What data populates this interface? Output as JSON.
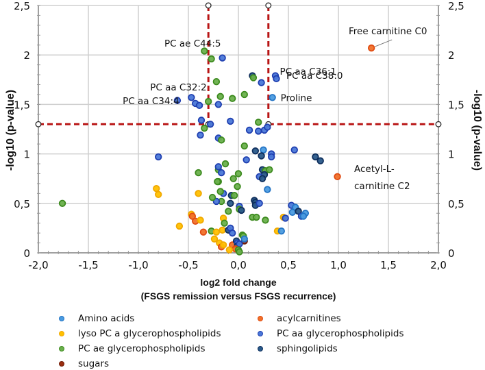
{
  "chart_data": {
    "type": "scatter",
    "title": "",
    "xlabel": "log2 fold change",
    "xlabel_sub": "(FSGS remission versus FSGS recurrence)",
    "ylabel": "-log10 (p-value)",
    "ylabel_right": "-log10 (p-value)",
    "xlim": [
      -2.0,
      2.0
    ],
    "ylim": [
      0,
      2.5
    ],
    "x_ticks": [
      "-2,0",
      "-1,5",
      "-1,0",
      "-0,5",
      "0,0",
      "0,5",
      "1,0",
      "1,5",
      "2,0"
    ],
    "x_tick_values": [
      -2,
      -1.5,
      -1,
      -0.5,
      0,
      0.5,
      1,
      1.5,
      2
    ],
    "y_ticks": [
      "0",
      "0,5",
      "1",
      "1,5",
      "2",
      "2,5"
    ],
    "y_tick_values": [
      0,
      0.5,
      1,
      1.5,
      2,
      2.5
    ],
    "grid": true,
    "legend_position": "bottom",
    "thresholds": {
      "x_low": -0.3,
      "x_high": 0.3,
      "y": 1.3,
      "color": "#b81414"
    },
    "categories": [
      {
        "key": "amino",
        "name": "Amino acids",
        "color": "#4a9be0",
        "edge": "#2273c4"
      },
      {
        "key": "lyso",
        "name": "lyso PC a glycerophospholipids",
        "color": "#ffc000",
        "edge": "#f0a800"
      },
      {
        "key": "pcae",
        "name": "PC ae glycerophospholipids",
        "color": "#6ab04c",
        "edge": "#3c8a1e"
      },
      {
        "key": "sugars",
        "name": "sugars",
        "color": "#9b2d10",
        "edge": "#6e1a06"
      },
      {
        "key": "acyl",
        "name": "acylcarnitines",
        "color": "#f0712a",
        "edge": "#e04a10"
      },
      {
        "key": "pcaa",
        "name": "PC aa glycerophospholipids",
        "color": "#4a78d8",
        "edge": "#1f3fb0"
      },
      {
        "key": "sphingo",
        "name": "sphingolipids",
        "color": "#2a5a8a",
        "edge": "#0e2e5c"
      }
    ],
    "legend_order": [
      0,
      4,
      1,
      5,
      2,
      6,
      3
    ],
    "annotations": [
      {
        "text": "Free carnitine C0",
        "x": 1.33,
        "y": 2.07,
        "leader": true
      },
      {
        "text": "PC ae C44:5",
        "x": -0.33,
        "y": 2.05
      },
      {
        "text": "PC aa C36:1",
        "x": 0.36,
        "y": 1.8
      },
      {
        "text": "PC aa C38:0",
        "x": 0.37,
        "y": 1.76
      },
      {
        "text": "PC aa C32:2",
        "x": -0.29,
        "y": 1.55
      },
      {
        "text": "PC aa C34:4",
        "x": -0.53,
        "y": 1.53
      },
      {
        "text": "Proline",
        "x": 0.34,
        "y": 1.57
      },
      {
        "text": "Acetyl-L-",
        "x": 0.99,
        "y": 0.77
      },
      {
        "text": "carnitine C2",
        "x": 0.99,
        "y": 0.77
      }
    ],
    "points": [
      {
        "c": "acyl",
        "x": 1.33,
        "y": 2.07
      },
      {
        "c": "pcae",
        "x": -0.34,
        "y": 2.04
      },
      {
        "c": "pcae",
        "x": -0.27,
        "y": 1.96
      },
      {
        "c": "pcaa",
        "x": -0.16,
        "y": 1.97
      },
      {
        "c": "pcaa",
        "x": 0.37,
        "y": 1.79
      },
      {
        "c": "pcaa",
        "x": 0.38,
        "y": 1.76
      },
      {
        "c": "sphingo",
        "x": 0.14,
        "y": 1.79
      },
      {
        "c": "pcae",
        "x": 0.15,
        "y": 1.77
      },
      {
        "c": "pcaa",
        "x": 0.23,
        "y": 1.72
      },
      {
        "c": "pcae",
        "x": -0.22,
        "y": 1.73
      },
      {
        "c": "pcae",
        "x": 0.06,
        "y": 1.6
      },
      {
        "c": "pcae",
        "x": -0.06,
        "y": 1.56
      },
      {
        "c": "amino",
        "x": 0.34,
        "y": 1.57
      },
      {
        "c": "pcaa",
        "x": -0.47,
        "y": 1.57
      },
      {
        "c": "pcae",
        "x": -0.18,
        "y": 1.58
      },
      {
        "c": "pcaa",
        "x": -0.43,
        "y": 1.51
      },
      {
        "c": "pcaa",
        "x": -0.39,
        "y": 1.49
      },
      {
        "c": "pcae",
        "x": -0.3,
        "y": 1.53
      },
      {
        "c": "pcaa",
        "x": -0.2,
        "y": 1.5
      },
      {
        "c": "pcaa",
        "x": -0.61,
        "y": 1.54
      },
      {
        "c": "pcaa",
        "x": -0.37,
        "y": 1.34
      },
      {
        "c": "pcae",
        "x": 0.2,
        "y": 1.32
      },
      {
        "c": "pcaa",
        "x": -0.08,
        "y": 1.33
      },
      {
        "c": "pcaa",
        "x": 0.11,
        "y": 1.24
      },
      {
        "c": "pcaa",
        "x": 0.2,
        "y": 1.23
      },
      {
        "c": "pcaa",
        "x": 0.26,
        "y": 1.24
      },
      {
        "c": "pcaa",
        "x": 0.29,
        "y": 1.27
      },
      {
        "c": "pcaa",
        "x": -0.28,
        "y": 1.3
      },
      {
        "c": "pcae",
        "x": -0.34,
        "y": 1.26
      },
      {
        "c": "pcaa",
        "x": -0.38,
        "y": 1.19
      },
      {
        "c": "pcaa",
        "x": -0.2,
        "y": 1.16
      },
      {
        "c": "pcae",
        "x": -0.17,
        "y": 1.14
      },
      {
        "c": "pcae",
        "x": 0.06,
        "y": 1.08
      },
      {
        "c": "sphingo",
        "x": 0.17,
        "y": 1.03
      },
      {
        "c": "amino",
        "x": 0.25,
        "y": 1.04
      },
      {
        "c": "pcaa",
        "x": 0.33,
        "y": 1.0
      },
      {
        "c": "pcaa",
        "x": 0.56,
        "y": 1.04
      },
      {
        "c": "sphingo",
        "x": 0.23,
        "y": 0.98
      },
      {
        "c": "pcaa",
        "x": 0.08,
        "y": 0.94
      },
      {
        "c": "sphingo",
        "x": 0.77,
        "y": 0.97
      },
      {
        "c": "pcaa",
        "x": 0.33,
        "y": 0.97
      },
      {
        "c": "sphingo",
        "x": 0.82,
        "y": 0.93
      },
      {
        "c": "pcaa",
        "x": -0.8,
        "y": 0.97
      },
      {
        "c": "pcae",
        "x": -0.13,
        "y": 0.9
      },
      {
        "c": "pcae",
        "x": -0.2,
        "y": 0.84
      },
      {
        "c": "pcaa",
        "x": -0.2,
        "y": 0.87
      },
      {
        "c": "pcaa",
        "x": -0.17,
        "y": 0.81
      },
      {
        "c": "pcae",
        "x": -0.4,
        "y": 0.81
      },
      {
        "c": "pcae",
        "x": 0.0,
        "y": 0.8
      },
      {
        "c": "sphingo",
        "x": 0.24,
        "y": 0.84
      },
      {
        "c": "pcae",
        "x": 0.27,
        "y": 0.83
      },
      {
        "c": "pcae",
        "x": 0.31,
        "y": 0.84
      },
      {
        "c": "sphingo",
        "x": 0.26,
        "y": 0.79
      },
      {
        "c": "pcaa",
        "x": 0.21,
        "y": 0.77
      },
      {
        "c": "sphingo",
        "x": 0.24,
        "y": 0.75
      },
      {
        "c": "amino",
        "x": 0.29,
        "y": 0.64
      },
      {
        "c": "acyl",
        "x": 0.99,
        "y": 0.77
      },
      {
        "c": "pcaa",
        "x": 0.18,
        "y": 0.5
      },
      {
        "c": "pcae",
        "x": -0.2,
        "y": 0.72
      },
      {
        "c": "pcae",
        "x": -0.21,
        "y": 0.72
      },
      {
        "c": "pcaa",
        "x": -0.15,
        "y": 0.6
      },
      {
        "c": "pcae",
        "x": -0.05,
        "y": 0.75
      },
      {
        "c": "pcae",
        "x": -0.01,
        "y": 0.67
      },
      {
        "c": "pcae",
        "x": -0.17,
        "y": 0.52
      },
      {
        "c": "pcaa",
        "x": -0.22,
        "y": 0.52
      },
      {
        "c": "lyso",
        "x": -0.82,
        "y": 0.65
      },
      {
        "c": "lyso",
        "x": -0.8,
        "y": 0.59
      },
      {
        "c": "pcae",
        "x": -1.76,
        "y": 0.5
      },
      {
        "c": "lyso",
        "x": -0.4,
        "y": 0.6
      },
      {
        "c": "pcae",
        "x": -0.26,
        "y": 0.56
      },
      {
        "c": "pcae",
        "x": -0.18,
        "y": 0.62
      },
      {
        "c": "sphingo",
        "x": -0.07,
        "y": 0.58
      },
      {
        "c": "pcae",
        "x": -0.04,
        "y": 0.58
      },
      {
        "c": "sphingo",
        "x": -0.08,
        "y": 0.5
      },
      {
        "c": "pcae",
        "x": -0.1,
        "y": 0.42
      },
      {
        "c": "sphingo",
        "x": 0.16,
        "y": 0.53
      },
      {
        "c": "sphingo",
        "x": 0.17,
        "y": 0.51
      },
      {
        "c": "sphingo",
        "x": 0.17,
        "y": 0.48
      },
      {
        "c": "pcaa",
        "x": 0.21,
        "y": 0.5
      },
      {
        "c": "pcaa",
        "x": 0.01,
        "y": 0.47
      },
      {
        "c": "pcae",
        "x": 0.01,
        "y": 0.44
      },
      {
        "c": "sphingo",
        "x": 0.03,
        "y": 0.43
      },
      {
        "c": "pcaa",
        "x": 0.53,
        "y": 0.48
      },
      {
        "c": "amino",
        "x": 0.57,
        "y": 0.46
      },
      {
        "c": "amino",
        "x": 0.54,
        "y": 0.41
      },
      {
        "c": "sphingo",
        "x": 0.6,
        "y": 0.42
      },
      {
        "c": "pcaa",
        "x": 0.63,
        "y": 0.37
      },
      {
        "c": "amino",
        "x": 0.67,
        "y": 0.4
      },
      {
        "c": "amino",
        "x": 0.65,
        "y": 0.37
      },
      {
        "c": "pcae",
        "x": 0.14,
        "y": 0.36
      },
      {
        "c": "pcae",
        "x": 0.18,
        "y": 0.36
      },
      {
        "c": "pcae",
        "x": 0.27,
        "y": 0.33
      },
      {
        "c": "lyso",
        "x": 0.45,
        "y": 0.36
      },
      {
        "c": "pcaa",
        "x": 0.47,
        "y": 0.35
      },
      {
        "c": "lyso",
        "x": -0.47,
        "y": 0.39
      },
      {
        "c": "acyl",
        "x": -0.46,
        "y": 0.37
      },
      {
        "c": "acyl",
        "x": -0.43,
        "y": 0.32
      },
      {
        "c": "lyso",
        "x": -0.38,
        "y": 0.33
      },
      {
        "c": "lyso",
        "x": -0.59,
        "y": 0.27
      },
      {
        "c": "lyso",
        "x": -0.15,
        "y": 0.35
      },
      {
        "c": "pcae",
        "x": -0.14,
        "y": 0.3
      },
      {
        "c": "lyso",
        "x": -0.16,
        "y": 0.23
      },
      {
        "c": "sphingo",
        "x": -0.1,
        "y": 0.23
      },
      {
        "c": "pcaa",
        "x": -0.08,
        "y": 0.25
      },
      {
        "c": "pcaa",
        "x": -0.06,
        "y": 0.2
      },
      {
        "c": "acyl",
        "x": -0.35,
        "y": 0.21
      },
      {
        "c": "pcae",
        "x": -0.27,
        "y": 0.22
      },
      {
        "c": "lyso",
        "x": -0.22,
        "y": 0.21
      },
      {
        "c": "lyso",
        "x": 0.39,
        "y": 0.22
      },
      {
        "c": "amino",
        "x": 0.43,
        "y": 0.22
      },
      {
        "c": "pcae",
        "x": 0.04,
        "y": 0.18
      },
      {
        "c": "pcae",
        "x": 0.05,
        "y": 0.17
      },
      {
        "c": "sugars",
        "x": 0.06,
        "y": 0.12
      },
      {
        "c": "amino",
        "x": 0.06,
        "y": 0.14
      },
      {
        "c": "lyso",
        "x": -0.24,
        "y": 0.14
      },
      {
        "c": "lyso",
        "x": -0.19,
        "y": 0.1
      },
      {
        "c": "acyl",
        "x": -0.17,
        "y": 0.06
      },
      {
        "c": "lyso",
        "x": -0.15,
        "y": 0.08
      },
      {
        "c": "acyl",
        "x": -0.06,
        "y": 0.08
      },
      {
        "c": "sphingo",
        "x": -0.02,
        "y": 0.12
      },
      {
        "c": "pcaa",
        "x": -0.01,
        "y": 0.1
      },
      {
        "c": "sphingo",
        "x": -0.01,
        "y": 0.07
      },
      {
        "c": "pcaa",
        "x": 0.01,
        "y": 0.09
      },
      {
        "c": "acyl",
        "x": -0.03,
        "y": 0.04
      },
      {
        "c": "pcae",
        "x": 0.0,
        "y": 0.03
      },
      {
        "c": "pcae",
        "x": 0.01,
        "y": 0.01
      },
      {
        "c": "lyso",
        "x": -0.09,
        "y": 0.03
      }
    ]
  }
}
